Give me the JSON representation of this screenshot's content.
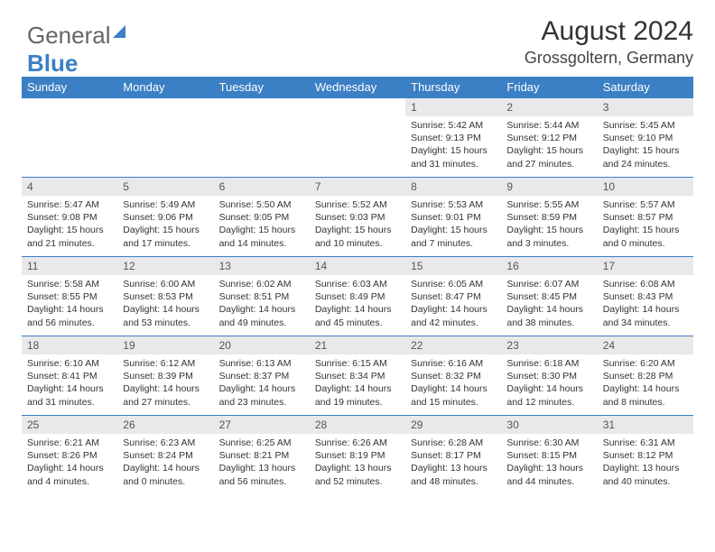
{
  "logo": {
    "part1": "General",
    "part2": "Blue"
  },
  "header": {
    "title": "August 2024",
    "location": "Grossgoltern, Germany"
  },
  "style": {
    "header_bg": "#3b7fc4",
    "header_text": "#ffffff",
    "daynum_bg": "#e8e9ea",
    "divider": "#3b7fc4",
    "body_font_size": 10.5,
    "title_font_size": 30
  },
  "weekdays": [
    "Sunday",
    "Monday",
    "Tuesday",
    "Wednesday",
    "Thursday",
    "Friday",
    "Saturday"
  ],
  "weeks": [
    [
      {
        "n": "",
        "sr": "",
        "ss": "",
        "dl": ""
      },
      {
        "n": "",
        "sr": "",
        "ss": "",
        "dl": ""
      },
      {
        "n": "",
        "sr": "",
        "ss": "",
        "dl": ""
      },
      {
        "n": "",
        "sr": "",
        "ss": "",
        "dl": ""
      },
      {
        "n": "1",
        "sr": "5:42 AM",
        "ss": "9:13 PM",
        "dl": "15 hours and 31 minutes."
      },
      {
        "n": "2",
        "sr": "5:44 AM",
        "ss": "9:12 PM",
        "dl": "15 hours and 27 minutes."
      },
      {
        "n": "3",
        "sr": "5:45 AM",
        "ss": "9:10 PM",
        "dl": "15 hours and 24 minutes."
      }
    ],
    [
      {
        "n": "4",
        "sr": "5:47 AM",
        "ss": "9:08 PM",
        "dl": "15 hours and 21 minutes."
      },
      {
        "n": "5",
        "sr": "5:49 AM",
        "ss": "9:06 PM",
        "dl": "15 hours and 17 minutes."
      },
      {
        "n": "6",
        "sr": "5:50 AM",
        "ss": "9:05 PM",
        "dl": "15 hours and 14 minutes."
      },
      {
        "n": "7",
        "sr": "5:52 AM",
        "ss": "9:03 PM",
        "dl": "15 hours and 10 minutes."
      },
      {
        "n": "8",
        "sr": "5:53 AM",
        "ss": "9:01 PM",
        "dl": "15 hours and 7 minutes."
      },
      {
        "n": "9",
        "sr": "5:55 AM",
        "ss": "8:59 PM",
        "dl": "15 hours and 3 minutes."
      },
      {
        "n": "10",
        "sr": "5:57 AM",
        "ss": "8:57 PM",
        "dl": "15 hours and 0 minutes."
      }
    ],
    [
      {
        "n": "11",
        "sr": "5:58 AM",
        "ss": "8:55 PM",
        "dl": "14 hours and 56 minutes."
      },
      {
        "n": "12",
        "sr": "6:00 AM",
        "ss": "8:53 PM",
        "dl": "14 hours and 53 minutes."
      },
      {
        "n": "13",
        "sr": "6:02 AM",
        "ss": "8:51 PM",
        "dl": "14 hours and 49 minutes."
      },
      {
        "n": "14",
        "sr": "6:03 AM",
        "ss": "8:49 PM",
        "dl": "14 hours and 45 minutes."
      },
      {
        "n": "15",
        "sr": "6:05 AM",
        "ss": "8:47 PM",
        "dl": "14 hours and 42 minutes."
      },
      {
        "n": "16",
        "sr": "6:07 AM",
        "ss": "8:45 PM",
        "dl": "14 hours and 38 minutes."
      },
      {
        "n": "17",
        "sr": "6:08 AM",
        "ss": "8:43 PM",
        "dl": "14 hours and 34 minutes."
      }
    ],
    [
      {
        "n": "18",
        "sr": "6:10 AM",
        "ss": "8:41 PM",
        "dl": "14 hours and 31 minutes."
      },
      {
        "n": "19",
        "sr": "6:12 AM",
        "ss": "8:39 PM",
        "dl": "14 hours and 27 minutes."
      },
      {
        "n": "20",
        "sr": "6:13 AM",
        "ss": "8:37 PM",
        "dl": "14 hours and 23 minutes."
      },
      {
        "n": "21",
        "sr": "6:15 AM",
        "ss": "8:34 PM",
        "dl": "14 hours and 19 minutes."
      },
      {
        "n": "22",
        "sr": "6:16 AM",
        "ss": "8:32 PM",
        "dl": "14 hours and 15 minutes."
      },
      {
        "n": "23",
        "sr": "6:18 AM",
        "ss": "8:30 PM",
        "dl": "14 hours and 12 minutes."
      },
      {
        "n": "24",
        "sr": "6:20 AM",
        "ss": "8:28 PM",
        "dl": "14 hours and 8 minutes."
      }
    ],
    [
      {
        "n": "25",
        "sr": "6:21 AM",
        "ss": "8:26 PM",
        "dl": "14 hours and 4 minutes."
      },
      {
        "n": "26",
        "sr": "6:23 AM",
        "ss": "8:24 PM",
        "dl": "14 hours and 0 minutes."
      },
      {
        "n": "27",
        "sr": "6:25 AM",
        "ss": "8:21 PM",
        "dl": "13 hours and 56 minutes."
      },
      {
        "n": "28",
        "sr": "6:26 AM",
        "ss": "8:19 PM",
        "dl": "13 hours and 52 minutes."
      },
      {
        "n": "29",
        "sr": "6:28 AM",
        "ss": "8:17 PM",
        "dl": "13 hours and 48 minutes."
      },
      {
        "n": "30",
        "sr": "6:30 AM",
        "ss": "8:15 PM",
        "dl": "13 hours and 44 minutes."
      },
      {
        "n": "31",
        "sr": "6:31 AM",
        "ss": "8:12 PM",
        "dl": "13 hours and 40 minutes."
      }
    ]
  ],
  "labels": {
    "sunrise": "Sunrise:",
    "sunset": "Sunset:",
    "daylight": "Daylight:"
  }
}
